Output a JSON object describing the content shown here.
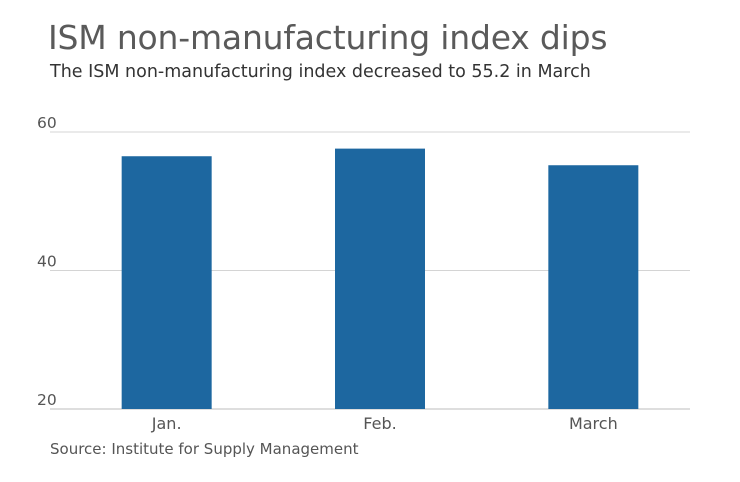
{
  "chart_data": {
    "type": "bar",
    "title": "ISM non-manufacturing index dips",
    "subtitle": "The ISM non-manufacturing index decreased to 55.2 in March",
    "source": "Source: Institute for Supply Management",
    "categories": [
      "Jan.",
      "Feb.",
      "March"
    ],
    "values": [
      56.5,
      57.6,
      55.2
    ],
    "ylim": [
      20,
      60
    ],
    "yticks": [
      20,
      40,
      60
    ],
    "xlabel": "",
    "ylabel": "",
    "grid": true,
    "bar_color": "#1d67a0",
    "grid_color": "#d4d4d4"
  }
}
